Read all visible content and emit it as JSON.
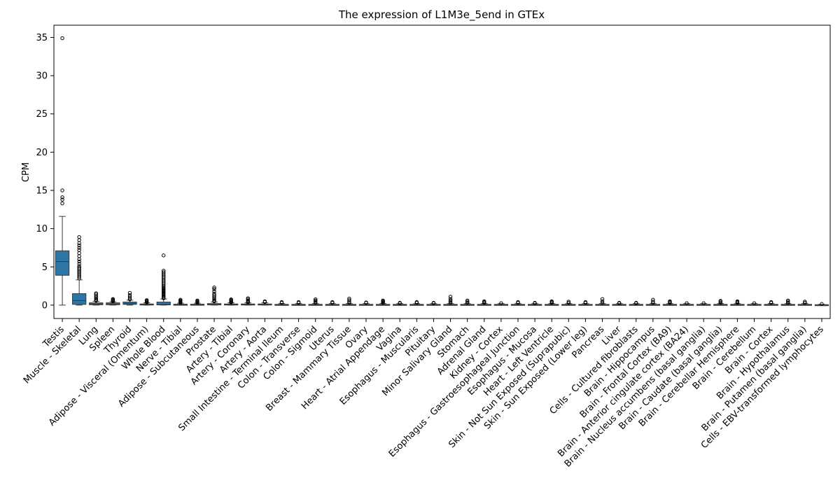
{
  "chart_data": {
    "type": "box",
    "title": "The expression of L1M3e_5end in GTEx",
    "xlabel": "",
    "ylabel": "CPM",
    "ylim": [
      -1.75,
      36.6
    ],
    "yticks": [
      0,
      5,
      10,
      15,
      20,
      25,
      30,
      35
    ],
    "color": "#2e75a8",
    "grid": false,
    "categories": [
      "Testis",
      "Muscle - Skeletal",
      "Lung",
      "Spleen",
      "Thyroid",
      "Adipose - Visceral (Omentum)",
      "Whole Blood",
      "Nerve - Tibial",
      "Adipose - Subcutaneous",
      "Prostate",
      "Artery - Tibial",
      "Artery - Coronary",
      "Artery - Aorta",
      "Small Intestine - Terminal Ileum",
      "Colon - Transverse",
      "Colon - Sigmoid",
      "Uterus",
      "Breast - Mammary Tissue",
      "Ovary",
      "Heart - Atrial Appendage",
      "Vagina",
      "Esophagus - Muscularis",
      "Pituitary",
      "Minor Salivary Gland",
      "Stomach",
      "Adrenal Gland",
      "Kidney - Cortex",
      "Esophagus - Gastroesophageal Junction",
      "Esophagus - Mucosa",
      "Heart - Left Ventricle",
      "Skin - Not Sun Exposed (Suprapubic)",
      "Skin - Sun Exposed (Lower leg)",
      "Pancreas",
      "Liver",
      "Cells - Cultured fibroblasts",
      "Brain - Hippocampus",
      "Brain - Frontal Cortex (BA9)",
      "Brain - Anterior cingulate cortex (BA24)",
      "Brain - Nucleus accumbens (basal ganglia)",
      "Brain - Caudate (basal ganglia)",
      "Brain - Cerebellar Hemisphere",
      "Brain - Cerebellum",
      "Brain - Cortex",
      "Brain - Hypothalamus",
      "Brain - Putamen (basal ganglia)",
      "Cells - EBV-transformed lymphocytes"
    ],
    "boxes": [
      {
        "min": 0.0,
        "q1": 3.9,
        "median": 5.7,
        "q3": 7.1,
        "max": 11.6,
        "outliers": [
          13.3,
          13.8,
          14.1,
          15.0,
          34.9
        ]
      },
      {
        "min": 0.0,
        "q1": 0.1,
        "median": 0.6,
        "q3": 1.5,
        "max": 3.3,
        "outliers": [
          3.5,
          3.7,
          3.9,
          4.1,
          4.3,
          4.5,
          4.7,
          4.9,
          5.1,
          5.4,
          5.7,
          6.0,
          6.4,
          6.8,
          7.2,
          7.5,
          7.8,
          8.1,
          8.5,
          8.9
        ]
      },
      {
        "min": 0.0,
        "q1": 0.05,
        "median": 0.15,
        "q3": 0.3,
        "max": 0.5,
        "outliers": [
          0.6,
          0.7,
          0.85,
          1.0,
          1.2,
          1.4,
          1.55
        ]
      },
      {
        "min": 0.0,
        "q1": 0.05,
        "median": 0.15,
        "q3": 0.3,
        "max": 0.45,
        "outliers": [
          0.5,
          0.6,
          0.7,
          0.8
        ]
      },
      {
        "min": 0.0,
        "q1": 0.1,
        "median": 0.2,
        "q3": 0.4,
        "max": 0.65,
        "outliers": [
          0.75,
          0.9,
          1.1,
          1.3,
          1.6
        ]
      },
      {
        "min": 0.0,
        "q1": 0.02,
        "median": 0.08,
        "q3": 0.15,
        "max": 0.3,
        "outliers": [
          0.35,
          0.45,
          0.55,
          0.65
        ]
      },
      {
        "min": 0.0,
        "q1": 0.03,
        "median": 0.1,
        "q3": 0.4,
        "max": 0.8,
        "outliers": [
          0.9,
          1.0,
          1.15,
          1.3,
          1.45,
          1.6,
          1.75,
          1.9,
          2.05,
          2.2,
          2.35,
          2.5,
          2.7,
          2.9,
          3.1,
          3.3,
          3.5,
          3.7,
          3.9,
          4.1,
          4.3,
          4.5,
          6.5
        ]
      },
      {
        "min": 0.0,
        "q1": 0.02,
        "median": 0.06,
        "q3": 0.12,
        "max": 0.25,
        "outliers": [
          0.3,
          0.4,
          0.5,
          0.6,
          0.7
        ]
      },
      {
        "min": 0.0,
        "q1": 0.02,
        "median": 0.06,
        "q3": 0.12,
        "max": 0.25,
        "outliers": [
          0.3,
          0.4,
          0.5,
          0.6
        ]
      },
      {
        "min": 0.0,
        "q1": 0.03,
        "median": 0.1,
        "q3": 0.2,
        "max": 0.4,
        "outliers": [
          0.5,
          0.6,
          0.75,
          0.9,
          1.1,
          1.3,
          1.5,
          1.8,
          2.1,
          2.3
        ]
      },
      {
        "min": 0.0,
        "q1": 0.03,
        "median": 0.08,
        "q3": 0.15,
        "max": 0.3,
        "outliers": [
          0.35,
          0.45,
          0.55,
          0.65,
          0.75
        ]
      },
      {
        "min": 0.0,
        "q1": 0.03,
        "median": 0.08,
        "q3": 0.15,
        "max": 0.3,
        "outliers": [
          0.35,
          0.45,
          0.6,
          0.75,
          0.9
        ]
      },
      {
        "min": 0.0,
        "q1": 0.03,
        "median": 0.08,
        "q3": 0.15,
        "max": 0.3,
        "outliers": [
          0.4,
          0.5
        ]
      },
      {
        "min": 0.0,
        "q1": 0.02,
        "median": 0.05,
        "q3": 0.1,
        "max": 0.2,
        "outliers": [
          0.3,
          0.4
        ]
      },
      {
        "min": 0.0,
        "q1": 0.02,
        "median": 0.05,
        "q3": 0.1,
        "max": 0.2,
        "outliers": [
          0.3,
          0.4
        ]
      },
      {
        "min": 0.0,
        "q1": 0.02,
        "median": 0.05,
        "q3": 0.1,
        "max": 0.2,
        "outliers": [
          0.3,
          0.45,
          0.6,
          0.75
        ]
      },
      {
        "min": 0.0,
        "q1": 0.02,
        "median": 0.05,
        "q3": 0.1,
        "max": 0.2,
        "outliers": [
          0.3,
          0.4
        ]
      },
      {
        "min": 0.0,
        "q1": 0.02,
        "median": 0.05,
        "q3": 0.1,
        "max": 0.2,
        "outliers": [
          0.3,
          0.45,
          0.65,
          0.85
        ]
      },
      {
        "min": 0.0,
        "q1": 0.02,
        "median": 0.05,
        "q3": 0.1,
        "max": 0.2,
        "outliers": [
          0.3,
          0.35
        ]
      },
      {
        "min": 0.0,
        "q1": 0.02,
        "median": 0.05,
        "q3": 0.1,
        "max": 0.2,
        "outliers": [
          0.3,
          0.4,
          0.5,
          0.6
        ]
      },
      {
        "min": 0.0,
        "q1": 0.02,
        "median": 0.05,
        "q3": 0.1,
        "max": 0.2,
        "outliers": [
          0.25,
          0.3
        ]
      },
      {
        "min": 0.0,
        "q1": 0.02,
        "median": 0.05,
        "q3": 0.1,
        "max": 0.2,
        "outliers": [
          0.3,
          0.4
        ]
      },
      {
        "min": 0.0,
        "q1": 0.02,
        "median": 0.05,
        "q3": 0.1,
        "max": 0.2,
        "outliers": [
          0.25,
          0.3
        ]
      },
      {
        "min": 0.0,
        "q1": 0.02,
        "median": 0.05,
        "q3": 0.1,
        "max": 0.2,
        "outliers": [
          0.3,
          0.45,
          0.6,
          0.8,
          1.1
        ]
      },
      {
        "min": 0.0,
        "q1": 0.02,
        "median": 0.05,
        "q3": 0.1,
        "max": 0.2,
        "outliers": [
          0.3,
          0.45,
          0.6
        ]
      },
      {
        "min": 0.0,
        "q1": 0.02,
        "median": 0.05,
        "q3": 0.1,
        "max": 0.2,
        "outliers": [
          0.3,
          0.4,
          0.5
        ]
      },
      {
        "min": 0.0,
        "q1": 0.02,
        "median": 0.05,
        "q3": 0.1,
        "max": 0.2,
        "outliers": [
          0.25
        ]
      },
      {
        "min": 0.0,
        "q1": 0.02,
        "median": 0.05,
        "q3": 0.1,
        "max": 0.2,
        "outliers": [
          0.3,
          0.4
        ]
      },
      {
        "min": 0.0,
        "q1": 0.02,
        "median": 0.05,
        "q3": 0.1,
        "max": 0.2,
        "outliers": [
          0.25,
          0.3
        ]
      },
      {
        "min": 0.0,
        "q1": 0.02,
        "median": 0.05,
        "q3": 0.1,
        "max": 0.2,
        "outliers": [
          0.3,
          0.4,
          0.5
        ]
      },
      {
        "min": 0.0,
        "q1": 0.02,
        "median": 0.05,
        "q3": 0.1,
        "max": 0.2,
        "outliers": [
          0.3,
          0.45
        ]
      },
      {
        "min": 0.0,
        "q1": 0.02,
        "median": 0.05,
        "q3": 0.1,
        "max": 0.2,
        "outliers": [
          0.3,
          0.4
        ]
      },
      {
        "min": 0.0,
        "q1": 0.02,
        "median": 0.05,
        "q3": 0.1,
        "max": 0.2,
        "outliers": [
          0.3,
          0.5,
          0.8
        ]
      },
      {
        "min": 0.0,
        "q1": 0.02,
        "median": 0.05,
        "q3": 0.1,
        "max": 0.2,
        "outliers": [
          0.25,
          0.3
        ]
      },
      {
        "min": 0.0,
        "q1": 0.02,
        "median": 0.05,
        "q3": 0.1,
        "max": 0.2,
        "outliers": [
          0.25,
          0.3
        ]
      },
      {
        "min": 0.0,
        "q1": 0.02,
        "median": 0.05,
        "q3": 0.1,
        "max": 0.2,
        "outliers": [
          0.3,
          0.45,
          0.7
        ]
      },
      {
        "min": 0.0,
        "q1": 0.02,
        "median": 0.05,
        "q3": 0.1,
        "max": 0.2,
        "outliers": [
          0.3,
          0.4,
          0.5
        ]
      },
      {
        "min": 0.0,
        "q1": 0.02,
        "median": 0.05,
        "q3": 0.1,
        "max": 0.2,
        "outliers": [
          0.25
        ]
      },
      {
        "min": 0.0,
        "q1": 0.02,
        "median": 0.05,
        "q3": 0.1,
        "max": 0.2,
        "outliers": [
          0.25
        ]
      },
      {
        "min": 0.0,
        "q1": 0.02,
        "median": 0.05,
        "q3": 0.1,
        "max": 0.2,
        "outliers": [
          0.3,
          0.45,
          0.55
        ]
      },
      {
        "min": 0.0,
        "q1": 0.02,
        "median": 0.05,
        "q3": 0.1,
        "max": 0.2,
        "outliers": [
          0.3,
          0.4,
          0.5
        ]
      },
      {
        "min": 0.0,
        "q1": 0.02,
        "median": 0.05,
        "q3": 0.1,
        "max": 0.2,
        "outliers": [
          0.25
        ]
      },
      {
        "min": 0.0,
        "q1": 0.02,
        "median": 0.05,
        "q3": 0.1,
        "max": 0.2,
        "outliers": [
          0.3,
          0.4
        ]
      },
      {
        "min": 0.0,
        "q1": 0.02,
        "median": 0.05,
        "q3": 0.1,
        "max": 0.2,
        "outliers": [
          0.3,
          0.45,
          0.6
        ]
      },
      {
        "min": 0.0,
        "q1": 0.02,
        "median": 0.05,
        "q3": 0.1,
        "max": 0.2,
        "outliers": [
          0.3,
          0.45
        ]
      },
      {
        "min": 0.0,
        "q1": 0.01,
        "median": 0.03,
        "q3": 0.06,
        "max": 0.1,
        "outliers": [
          0.15
        ]
      }
    ]
  }
}
